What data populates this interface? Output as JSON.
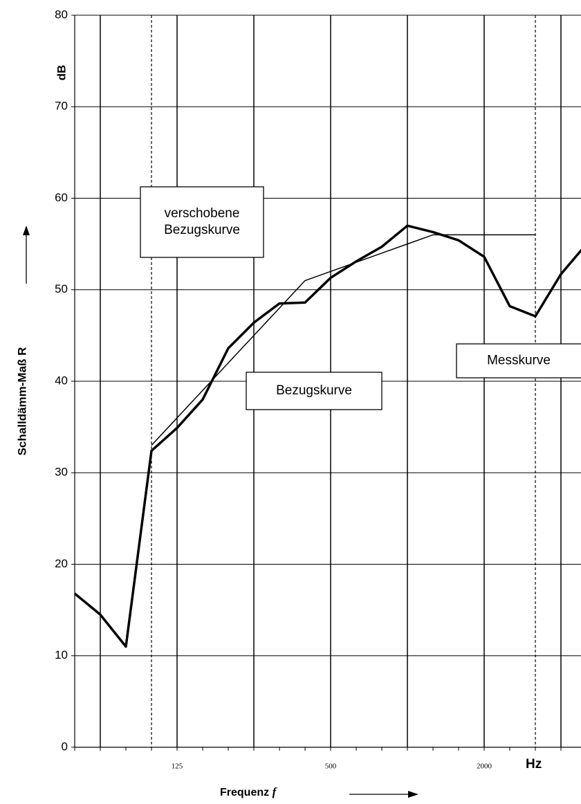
{
  "chart_data": {
    "type": "line",
    "categories": [
      null,
      null,
      null,
      null,
      "125",
      null,
      null,
      null,
      null,
      null,
      "500",
      null,
      null,
      null,
      null,
      null,
      "2000",
      null,
      null,
      null,
      null
    ],
    "series": [
      {
        "name": "Messkurve",
        "color": "#000000",
        "values": [
          16.8,
          14.5,
          11.0,
          32.4,
          34.9,
          38.0,
          43.6,
          46.4,
          48.5,
          48.6,
          51.3,
          53.1,
          54.7,
          57.0,
          56.3,
          55.4,
          53.6,
          48.2,
          47.1,
          51.7,
          55.0
        ]
      },
      {
        "name": "Bezugskurve",
        "color": "#000000",
        "values": [
          null,
          null,
          null,
          33,
          36,
          39,
          42,
          45,
          48,
          51,
          52,
          53,
          54,
          55,
          56,
          56,
          56,
          56,
          56,
          null,
          null
        ]
      }
    ],
    "ylim": [
      0,
      80
    ],
    "yticks": [
      0,
      10,
      20,
      30,
      40,
      50,
      60,
      70,
      80
    ],
    "grid": true,
    "y_label": "Schalldämm-Maß R",
    "y_unit": "dB",
    "x_label": {
      "text": "Frequenz",
      "symbol": "f"
    },
    "x_unit": "Hz",
    "annotations": [
      [
        "verschobene",
        "Bezugskurve"
      ],
      [
        "Bezugskurve"
      ],
      [
        "Messkurve"
      ]
    ]
  }
}
